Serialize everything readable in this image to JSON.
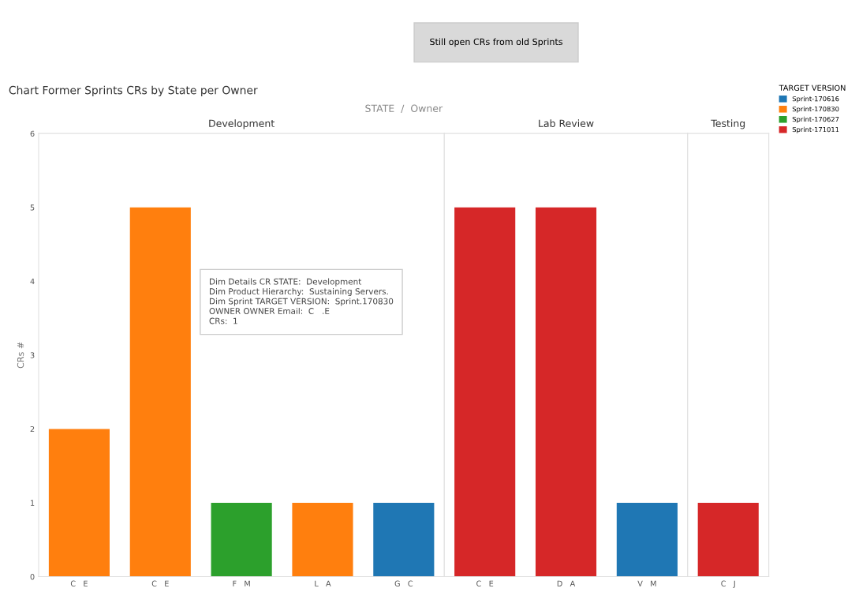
{
  "chart_data": [
    {
      "type": "bar",
      "title": "Development",
      "ylabel": "CRs #",
      "ylim": [
        0,
        6
      ],
      "yticks": [
        0,
        1,
        2,
        3,
        4,
        5,
        6
      ],
      "grid": false,
      "legend": "right",
      "legend_title": "TARGET VERSION",
      "categories": [
        "C   E",
        "C   E",
        "F   M",
        "L   A",
        "G   C"
      ],
      "series": [
        {
          "name": "Sprint-170616",
          "color": "#1f77b4",
          "values": [
            null,
            null,
            null,
            null,
            1
          ]
        },
        {
          "name": "Sprint-170830",
          "color": "#ff7f0e",
          "values": [
            2,
            5,
            null,
            1,
            null
          ]
        },
        {
          "name": "Sprint-170627",
          "color": "#2ca02c",
          "values": [
            null,
            null,
            1,
            null,
            null
          ]
        },
        {
          "name": "Sprint-171011",
          "color": "#d62728",
          "values": [
            null,
            null,
            null,
            null,
            null
          ]
        }
      ],
      "annotations": [
        "Still open CRs from old Sprints",
        "Chart Former Sprints CRs by State per Owner",
        "STATE  /  Owner",
        "Dim Details CR STATE:  Development\nDim Product Hierarchy:  Sustaining Servers.\nDim Sprint TARGET VERSION:  Sprint.170830\nOWNER OWNER Email:  C   .E\nCRs:  1"
      ]
    },
    {
      "type": "bar",
      "title": "Lab Review",
      "ylim": [
        0,
        6
      ],
      "yticks": [
        0,
        1,
        2,
        3,
        4,
        5,
        6
      ],
      "tick_labels": "x",
      "grid": false,
      "categories": [
        "C   E",
        "D   A",
        "V   M"
      ],
      "series": [
        {
          "color": "#1f77b4",
          "values": [
            null,
            null,
            1
          ]
        },
        {
          "color": "#d62728",
          "values": [
            5,
            5,
            null
          ]
        }
      ]
    },
    {
      "type": "bar",
      "title": "Testing",
      "ylim": [
        0,
        6
      ],
      "yticks": [
        0,
        1,
        2,
        3,
        4,
        5,
        6
      ],
      "tick_labels": "x",
      "grid": false,
      "categories": [
        "C   J"
      ],
      "series": [
        {
          "color": "#d62728",
          "values": [
            1
          ]
        }
      ]
    }
  ]
}
